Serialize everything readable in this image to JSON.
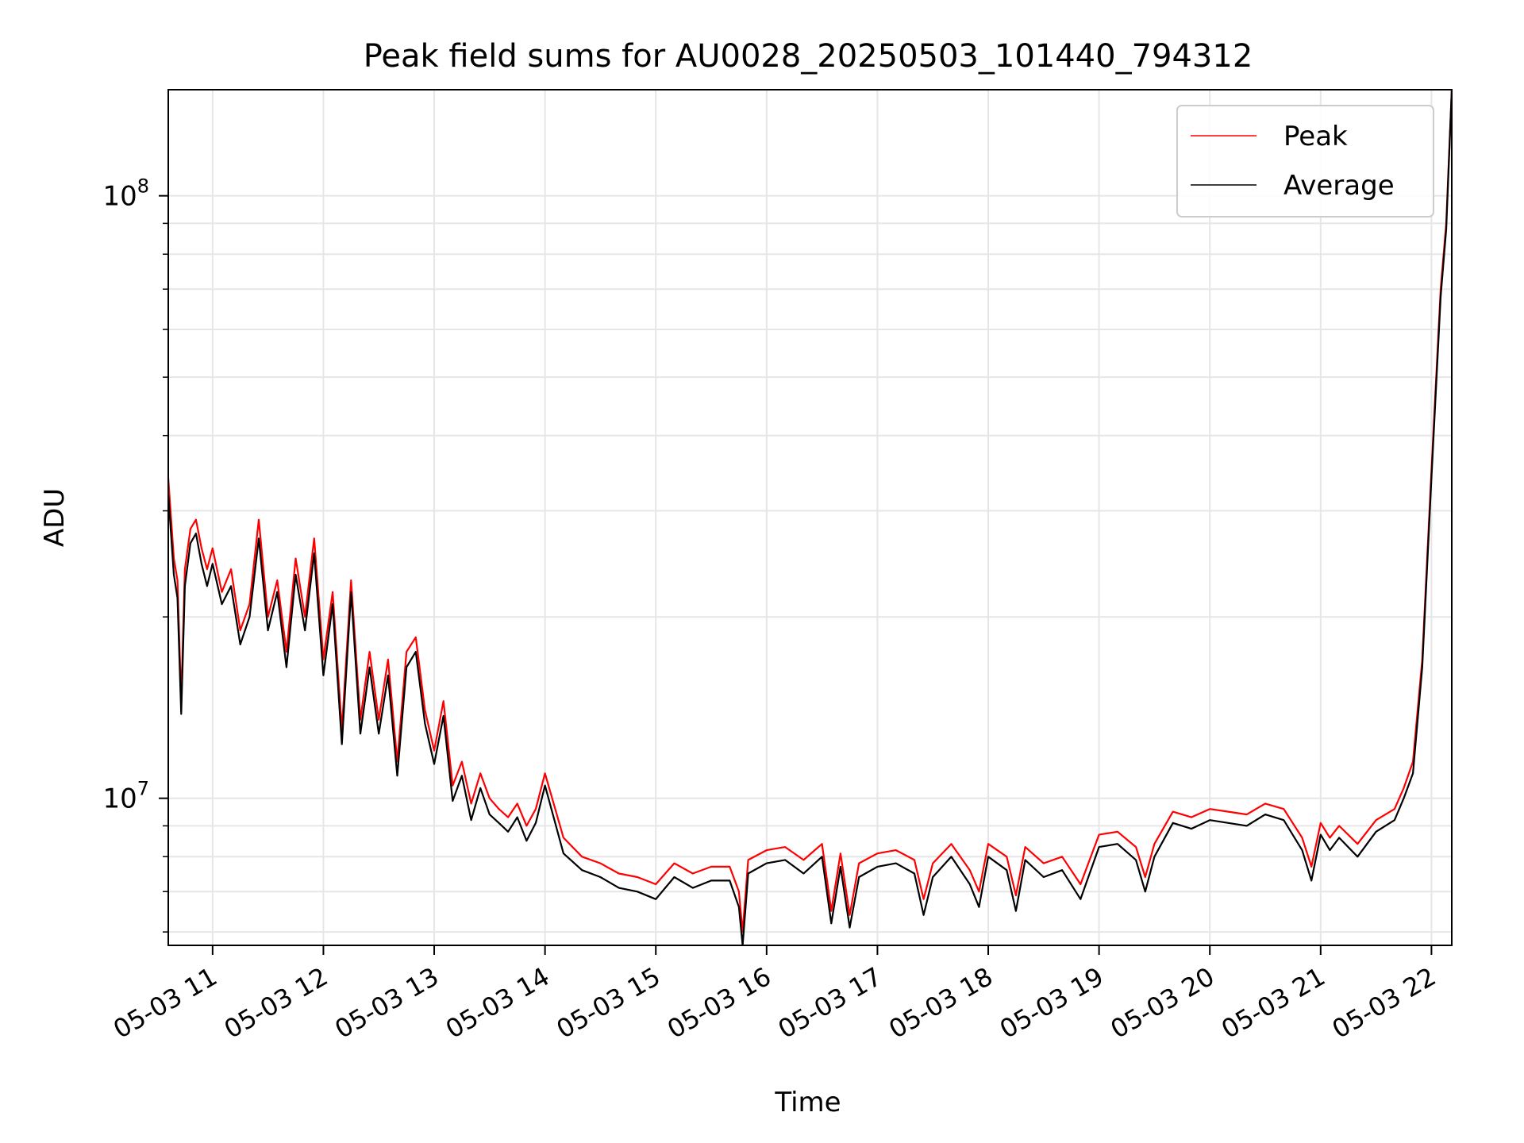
{
  "chart_data": {
    "type": "line",
    "title": "Peak field sums for AU0028_20250503_101440_794312",
    "xlabel": "Time",
    "ylabel": "ADU",
    "yscale": "log",
    "ylim": [
      5700000,
      150000000
    ],
    "xlim": [
      "2025-05-03 10:36",
      "2025-05-03 22:11"
    ],
    "grid": true,
    "legend_position": "top-right",
    "x_ticks": [
      "05-03 11",
      "05-03 12",
      "05-03 13",
      "05-03 14",
      "05-03 15",
      "05-03 16",
      "05-03 17",
      "05-03 18",
      "05-03 19",
      "05-03 20",
      "05-03 21",
      "05-03 22"
    ],
    "y_ticks": [
      {
        "base": "10",
        "exp": "7"
      },
      {
        "base": "10",
        "exp": "8"
      }
    ],
    "x": [
      "2025-05-03 10:36",
      "2025-05-03 10:39",
      "2025-05-03 10:41",
      "2025-05-03 10:43",
      "2025-05-03 10:45",
      "2025-05-03 10:48",
      "2025-05-03 10:51",
      "2025-05-03 10:54",
      "2025-05-03 10:57",
      "2025-05-03 11:00",
      "2025-05-03 11:05",
      "2025-05-03 11:10",
      "2025-05-03 11:15",
      "2025-05-03 11:20",
      "2025-05-03 11:25",
      "2025-05-03 11:30",
      "2025-05-03 11:35",
      "2025-05-03 11:40",
      "2025-05-03 11:45",
      "2025-05-03 11:50",
      "2025-05-03 11:55",
      "2025-05-03 12:00",
      "2025-05-03 12:05",
      "2025-05-03 12:10",
      "2025-05-03 12:15",
      "2025-05-03 12:20",
      "2025-05-03 12:25",
      "2025-05-03 12:30",
      "2025-05-03 12:35",
      "2025-05-03 12:40",
      "2025-05-03 12:45",
      "2025-05-03 12:50",
      "2025-05-03 12:55",
      "2025-05-03 13:00",
      "2025-05-03 13:05",
      "2025-05-03 13:10",
      "2025-05-03 13:15",
      "2025-05-03 13:20",
      "2025-05-03 13:25",
      "2025-05-03 13:30",
      "2025-05-03 13:35",
      "2025-05-03 13:40",
      "2025-05-03 13:45",
      "2025-05-03 13:50",
      "2025-05-03 13:55",
      "2025-05-03 14:00",
      "2025-05-03 14:10",
      "2025-05-03 14:20",
      "2025-05-03 14:30",
      "2025-05-03 14:40",
      "2025-05-03 14:50",
      "2025-05-03 15:00",
      "2025-05-03 15:10",
      "2025-05-03 15:20",
      "2025-05-03 15:30",
      "2025-05-03 15:40",
      "2025-05-03 15:45",
      "2025-05-03 15:47",
      "2025-05-03 15:50",
      "2025-05-03 16:00",
      "2025-05-03 16:10",
      "2025-05-03 16:20",
      "2025-05-03 16:30",
      "2025-05-03 16:35",
      "2025-05-03 16:40",
      "2025-05-03 16:45",
      "2025-05-03 16:50",
      "2025-05-03 17:00",
      "2025-05-03 17:10",
      "2025-05-03 17:20",
      "2025-05-03 17:25",
      "2025-05-03 17:30",
      "2025-05-03 17:40",
      "2025-05-03 17:50",
      "2025-05-03 17:55",
      "2025-05-03 18:00",
      "2025-05-03 18:10",
      "2025-05-03 18:15",
      "2025-05-03 18:20",
      "2025-05-03 18:30",
      "2025-05-03 18:40",
      "2025-05-03 18:50",
      "2025-05-03 19:00",
      "2025-05-03 19:10",
      "2025-05-03 19:20",
      "2025-05-03 19:25",
      "2025-05-03 19:30",
      "2025-05-03 19:40",
      "2025-05-03 19:50",
      "2025-05-03 20:00",
      "2025-05-03 20:10",
      "2025-05-03 20:20",
      "2025-05-03 20:30",
      "2025-05-03 20:40",
      "2025-05-03 20:50",
      "2025-05-03 20:55",
      "2025-05-03 21:00",
      "2025-05-03 21:05",
      "2025-05-03 21:10",
      "2025-05-03 21:20",
      "2025-05-03 21:30",
      "2025-05-03 21:40",
      "2025-05-03 21:45",
      "2025-05-03 21:50",
      "2025-05-03 21:55",
      "2025-05-03 22:00",
      "2025-05-03 22:05",
      "2025-05-03 22:08",
      "2025-05-03 22:11"
    ],
    "series": [
      {
        "name": "Peak",
        "color": "#ff0000",
        "values": [
          34000000,
          25000000,
          23000000,
          14500000,
          24000000,
          28000000,
          29000000,
          26000000,
          24000000,
          26000000,
          22000000,
          24000000,
          19000000,
          21000000,
          29000000,
          20000000,
          23000000,
          17500000,
          25000000,
          20000000,
          27000000,
          17000000,
          22000000,
          13000000,
          23000000,
          13500000,
          17500000,
          13500000,
          17000000,
          11500000,
          17500000,
          18500000,
          14000000,
          12000000,
          14500000,
          10500000,
          11500000,
          9800000,
          11000000,
          10000000,
          9600000,
          9300000,
          9800000,
          9000000,
          9600000,
          11000000,
          8600000,
          8000000,
          7800000,
          7500000,
          7400000,
          7200000,
          7800000,
          7500000,
          7700000,
          7700000,
          7000000,
          6000000,
          7900000,
          8200000,
          8300000,
          7900000,
          8400000,
          6500000,
          8100000,
          6400000,
          7800000,
          8100000,
          8200000,
          7900000,
          6800000,
          7800000,
          8400000,
          7600000,
          7000000,
          8400000,
          8000000,
          6900000,
          8300000,
          7800000,
          8000000,
          7200000,
          8700000,
          8800000,
          8300000,
          7400000,
          8400000,
          9500000,
          9300000,
          9600000,
          9500000,
          9400000,
          9800000,
          9600000,
          8600000,
          7700000,
          9100000,
          8600000,
          9000000,
          8400000,
          9200000,
          9600000,
          10400000,
          11500000,
          17000000,
          35000000,
          70000000,
          90000000,
          150000000
        ]
      },
      {
        "name": "Average",
        "color": "#000000",
        "values": [
          32000000,
          23500000,
          21500000,
          13800000,
          22500000,
          26500000,
          27500000,
          24500000,
          22500000,
          24500000,
          21000000,
          22500000,
          18000000,
          20000000,
          27000000,
          19000000,
          22000000,
          16500000,
          23500000,
          19000000,
          25500000,
          16000000,
          21000000,
          12300000,
          22000000,
          12800000,
          16500000,
          12800000,
          16000000,
          10900000,
          16500000,
          17500000,
          13300000,
          11400000,
          13700000,
          9900000,
          10900000,
          9200000,
          10400000,
          9400000,
          9100000,
          8800000,
          9300000,
          8500000,
          9100000,
          10500000,
          8100000,
          7600000,
          7400000,
          7100000,
          7000000,
          6800000,
          7400000,
          7100000,
          7300000,
          7300000,
          6600000,
          5700000,
          7500000,
          7800000,
          7900000,
          7500000,
          8000000,
          6200000,
          7700000,
          6100000,
          7400000,
          7700000,
          7800000,
          7500000,
          6400000,
          7400000,
          8000000,
          7200000,
          6600000,
          8000000,
          7600000,
          6500000,
          7900000,
          7400000,
          7600000,
          6800000,
          8300000,
          8400000,
          7900000,
          7000000,
          8000000,
          9100000,
          8900000,
          9200000,
          9100000,
          9000000,
          9400000,
          9200000,
          8200000,
          7300000,
          8700000,
          8200000,
          8600000,
          8000000,
          8800000,
          9200000,
          10000000,
          11000000,
          16500000,
          34000000,
          68000000,
          88000000,
          150000000
        ]
      }
    ]
  }
}
